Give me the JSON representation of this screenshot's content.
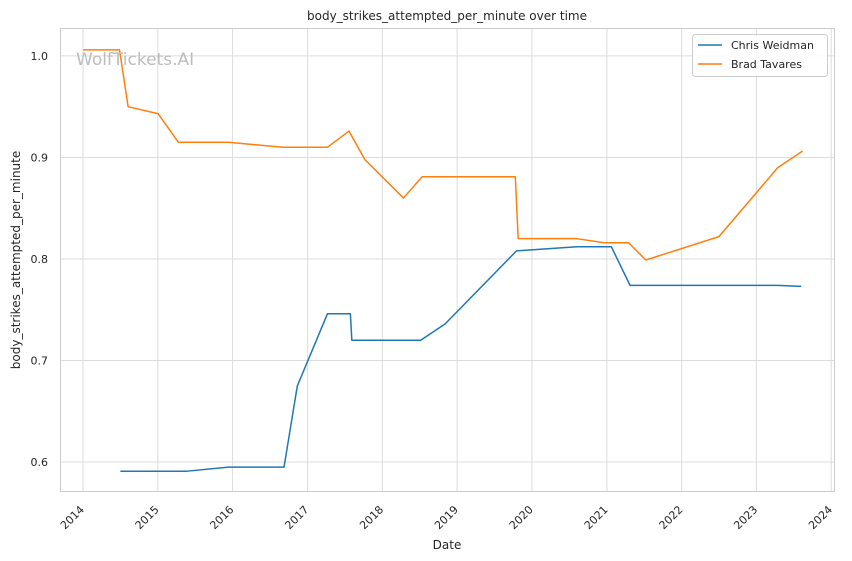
{
  "watermark": "WolfTickets.AI",
  "chart_data": {
    "type": "line",
    "title": "body_strikes_attempted_per_minute over time",
    "xlabel": "Date",
    "ylabel": "body_strikes_attempted_per_minute",
    "x_ticks": [
      "2014",
      "2015",
      "2016",
      "2017",
      "2018",
      "2019",
      "2020",
      "2021",
      "2022",
      "2023",
      "2024"
    ],
    "y_ticks": [
      "0.6",
      "0.7",
      "0.8",
      "0.9",
      "1.0"
    ],
    "xlim": [
      "2013-09-13",
      "2024-01-17"
    ],
    "ylim": [
      0.571,
      1.027
    ],
    "grid": true,
    "legend_position": "top-right",
    "series": [
      {
        "name": "Chris Weidman",
        "color": "#1f77b4",
        "points": [
          [
            "2014-07-05",
            0.591
          ],
          [
            "2015-05-23",
            0.591
          ],
          [
            "2015-12-12",
            0.595
          ],
          [
            "2016-09-08",
            0.595
          ],
          [
            "2016-11-12",
            0.675
          ],
          [
            "2017-04-08",
            0.746
          ],
          [
            "2017-07-29",
            0.746
          ],
          [
            "2017-08-05",
            0.72
          ],
          [
            "2018-07-07",
            0.72
          ],
          [
            "2018-11-03",
            0.736
          ],
          [
            "2019-10-18",
            0.808
          ],
          [
            "2020-08-08",
            0.812
          ],
          [
            "2021-01-23",
            0.812
          ],
          [
            "2021-04-24",
            0.774
          ],
          [
            "2023-04-15",
            0.774
          ],
          [
            "2023-08-05",
            0.773
          ]
        ]
      },
      {
        "name": "Brad Tavares",
        "color": "#ff7f0e",
        "points": [
          [
            "2014-01-04",
            1.006
          ],
          [
            "2014-06-28",
            1.006
          ],
          [
            "2014-08-09",
            0.95
          ],
          [
            "2015-01-03",
            0.943
          ],
          [
            "2015-04-11",
            0.915
          ],
          [
            "2015-12-12",
            0.915
          ],
          [
            "2016-09-03",
            0.91
          ],
          [
            "2017-04-08",
            0.91
          ],
          [
            "2017-07-22",
            0.926
          ],
          [
            "2017-10-07",
            0.898
          ],
          [
            "2018-04-14",
            0.86
          ],
          [
            "2018-07-14",
            0.881
          ],
          [
            "2019-10-12",
            0.881
          ],
          [
            "2019-10-26",
            0.82
          ],
          [
            "2020-08-08",
            0.82
          ],
          [
            "2020-12-19",
            0.816
          ],
          [
            "2021-04-17",
            0.816
          ],
          [
            "2021-07-10",
            0.799
          ],
          [
            "2022-07-02",
            0.822
          ],
          [
            "2023-04-15",
            0.89
          ],
          [
            "2023-08-12",
            0.906
          ]
        ]
      }
    ]
  }
}
